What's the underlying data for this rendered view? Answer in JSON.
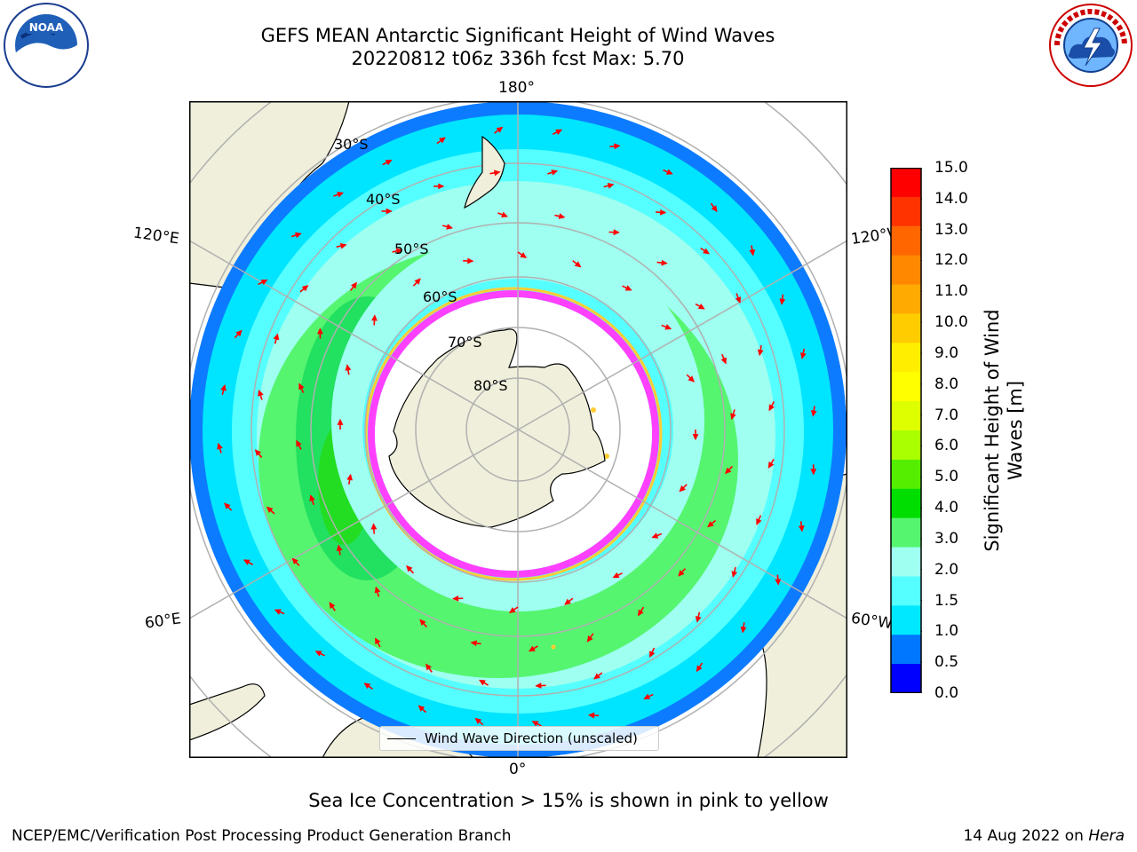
{
  "header": {
    "title_line1": "GEFS MEAN Antarctic Significant Height of Wind Waves",
    "title_line2": "20220812 t06z 336h fcst   Max: 5.70"
  },
  "map": {
    "projection": "south-polar-stereographic",
    "lon_labels": [
      "180°",
      "120°E",
      "120°W",
      "60°E",
      "60°W",
      "0°"
    ],
    "lat_labels": [
      "30°S",
      "40°S",
      "50°S",
      "60°S",
      "70°S",
      "80°S"
    ],
    "legend_label": "Wind Wave Direction (unscaled)",
    "land_color": "#efefdb",
    "arrow_color": "#ff0000",
    "sea_ice_colors": [
      "#ff40ff",
      "#ffcc33"
    ]
  },
  "colorbar": {
    "label": "Significant Height of Wind Waves [m]",
    "ticks": [
      "15.0",
      "14.0",
      "13.0",
      "12.0",
      "11.0",
      "10.0",
      "9.0",
      "8.0",
      "7.0",
      "6.0",
      "5.0",
      "4.0",
      "3.0",
      "2.0",
      "1.5",
      "1.0",
      "0.5",
      "0.0"
    ],
    "colors_top_to_bottom": [
      "#ff0000",
      "#ff3300",
      "#ff6600",
      "#ff8800",
      "#ffaa00",
      "#ffcc00",
      "#ffee00",
      "#ffff00",
      "#ddff00",
      "#aaff00",
      "#55ee00",
      "#00dd00",
      "#55f570",
      "#9ffff0",
      "#55ffff",
      "#00e8ff",
      "#0077ff",
      "#0000ff"
    ]
  },
  "footer": {
    "sea_ice_note": "Sea Ice Concentration > 15% is shown in pink to yellow",
    "producer": "NCEP/EMC/Verification Post Processing Product Generation Branch",
    "date_prefix": "14 Aug 2022 on ",
    "machine": "Hera"
  }
}
